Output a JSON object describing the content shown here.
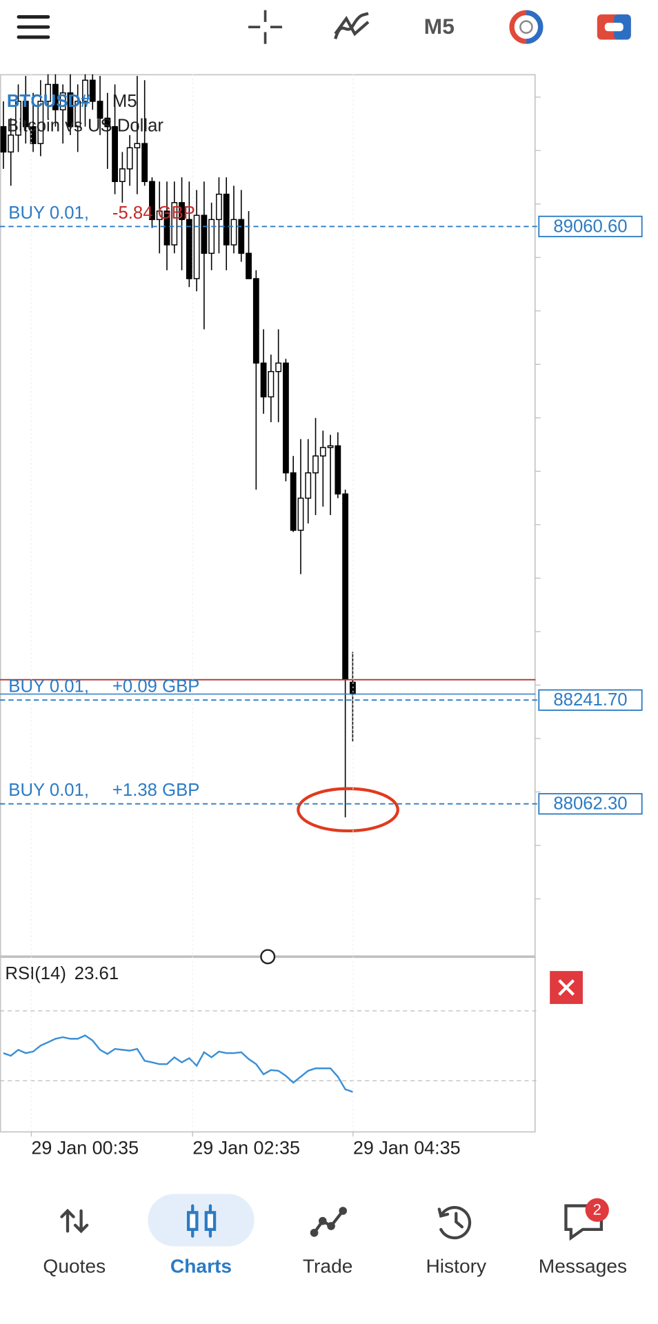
{
  "toolbar": {
    "timeframe": "M5"
  },
  "chart_data": {
    "type": "candlestick",
    "symbol": "BTCUSD#",
    "timeframe": "M5",
    "description": "Bitcoin vs US Dollar",
    "ylim": [
      87798.0,
      89323.7
    ],
    "open": [
      89233.2,
      89189.4,
      89218.6,
      89277.0,
      89233.2,
      89204.0,
      89277.0,
      89306.2,
      89262.4,
      89291.6,
      89233.2,
      89277.0,
      89313.5,
      89277.0,
      89247.8,
      89233.2,
      89138.3,
      89160.2,
      89196.7,
      89204.0,
      89138.3,
      89072.6,
      89087.2,
      89028.8,
      89101.8,
      89072.6,
      88970.4,
      89079.9,
      89014.2,
      89072.6,
      89116.4,
      89028.8,
      89072.6,
      89014.2,
      88970.4,
      88824.4,
      88766.0,
      88809.8,
      88824.4,
      88634.6,
      88535.3,
      88590.8,
      88634.6,
      88663.8,
      88678.4,
      88681.3,
      88598.1,
      88272.5
    ],
    "high": [
      89277.0,
      89247.8,
      89306.2,
      89320.8,
      89291.6,
      89313.5,
      89328.1,
      89328.1,
      89306.2,
      89328.1,
      89306.2,
      89328.1,
      89328.1,
      89320.8,
      89291.6,
      89306.2,
      89189.4,
      89218.6,
      89320.8,
      89313.5,
      89145.6,
      89138.3,
      89138.3,
      89138.3,
      89145.6,
      89138.3,
      89123.7,
      89138.3,
      89101.8,
      89145.6,
      89145.6,
      89131.0,
      89123.7,
      89087.2,
      88985.0,
      88882.8,
      88839.0,
      88882.8,
      88831.7,
      88663.8,
      88693.0,
      88693.0,
      88729.5,
      88707.6,
      88700.3,
      88704.7,
      88605.4,
      88325.1
    ],
    "low": [
      89160.2,
      89131.0,
      89189.4,
      89204.0,
      89189.4,
      89182.1,
      89247.8,
      89233.2,
      89204.0,
      89218.6,
      89189.4,
      89233.2,
      89262.4,
      89218.6,
      89160.2,
      89116.4,
      89101.8,
      89131.0,
      89116.4,
      89131.0,
      89058.0,
      89014.2,
      88985.0,
      89014.2,
      88985.0,
      88955.8,
      88948.5,
      88882.8,
      88985.0,
      89014.2,
      88985.0,
      89014.2,
      88999.6,
      88970.4,
      88605.4,
      88736.8,
      88722.2,
      88722.2,
      88620.0,
      88532.4,
      88459.4,
      88547.0,
      88561.6,
      88576.2,
      88561.6,
      88590.8,
      88038.9,
      88170.3
    ],
    "close": [
      89189.4,
      89218.6,
      89277.0,
      89233.2,
      89204.0,
      89277.0,
      89306.2,
      89262.4,
      89291.6,
      89233.2,
      89277.0,
      89313.5,
      89277.0,
      89247.8,
      89233.2,
      89138.3,
      89160.2,
      89196.7,
      89204.0,
      89138.3,
      89072.6,
      89087.2,
      89028.8,
      89101.8,
      89072.6,
      88970.4,
      89079.9,
      89014.2,
      89072.6,
      89116.4,
      89028.8,
      89072.6,
      89014.2,
      88970.4,
      88824.4,
      88766.0,
      88809.8,
      88824.4,
      88634.6,
      88535.3,
      88590.8,
      88634.6,
      88663.8,
      88678.4,
      88681.3,
      88598.1,
      88276.9,
      88252.1
    ],
    "bid_line": 88276.9,
    "ask_line": 88252.1,
    "orders": [
      {
        "label": "BUY 0.01,",
        "profit": "-5.84 GBP",
        "profit_color": "#c62828",
        "price": {
          "value": 89060.6,
          "label": "89060.60"
        }
      },
      {
        "label": "BUY 0.01,",
        "profit": "+0.09 GBP",
        "profit_color": "#2b7bc4",
        "price": {
          "value": 88241.7,
          "label": "88241.70"
        }
      },
      {
        "label": "BUY 0.01,",
        "profit": "+1.38 GBP",
        "profit_color": "#2b7bc4",
        "price": {
          "value": 88062.3,
          "label": "88062.30"
        }
      }
    ],
    "x_labels": [
      "29 Jan 00:35",
      "29 Jan 02:35",
      "29 Jan 04:35"
    ],
    "rsi": {
      "name": "RSI(14)",
      "current": 23.61,
      "ylim": [
        0,
        100
      ],
      "levels": [
        70,
        30
      ],
      "color": "#3a8fd6",
      "values": [
        45.8,
        44.3,
        47.7,
        45.8,
        46.7,
        50.1,
        52.0,
        54.0,
        54.9,
        54.0,
        54.0,
        55.9,
        53.0,
        47.7,
        45.3,
        48.2,
        47.7,
        47.2,
        48.2,
        41.4,
        40.5,
        39.5,
        39.5,
        43.4,
        40.5,
        42.9,
        38.6,
        46.3,
        43.4,
        46.7,
        45.8,
        45.8,
        46.3,
        42.4,
        39.5,
        33.7,
        36.1,
        35.7,
        32.8,
        28.9,
        32.3,
        35.7,
        37.1,
        37.1,
        37.1,
        32.3,
        25.1,
        23.61
      ]
    }
  },
  "nav": {
    "items": [
      "Quotes",
      "Charts",
      "Trade",
      "History",
      "Messages"
    ],
    "badge": 2
  }
}
